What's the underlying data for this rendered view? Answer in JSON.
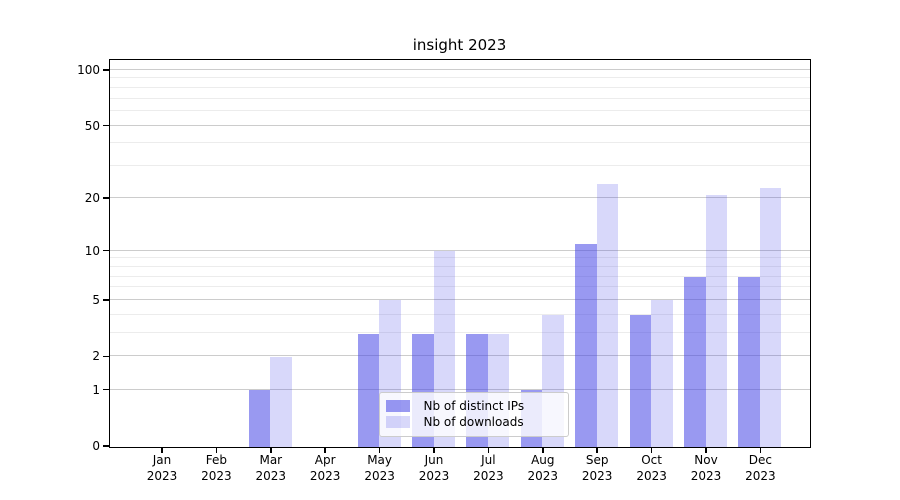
{
  "title": "insight 2023",
  "chart_data": {
    "type": "bar",
    "title": "insight 2023",
    "categories": [
      "Jan 2023",
      "Feb 2023",
      "Mar 2023",
      "Apr 2023",
      "May 2023",
      "Jun 2023",
      "Jul 2023",
      "Aug 2023",
      "Sep 2023",
      "Oct 2023",
      "Nov 2023",
      "Dec 2023"
    ],
    "x": {
      "months": [
        "Jan",
        "Feb",
        "Mar",
        "Apr",
        "May",
        "Jun",
        "Jul",
        "Aug",
        "Sep",
        "Oct",
        "Nov",
        "Dec"
      ],
      "year": "2023"
    },
    "series": [
      {
        "name": "Nb of distinct IPs",
        "color": "rgba(70,70,230,0.55)",
        "values": [
          0,
          0,
          1,
          0,
          3,
          3,
          3,
          1,
          11,
          4,
          7,
          7
        ]
      },
      {
        "name": "Nb of downloads",
        "color": "rgba(70,70,230,0.21)",
        "values": [
          0,
          0,
          2,
          0,
          5,
          10,
          3,
          4,
          24,
          5,
          21,
          23
        ]
      }
    ],
    "xlabel": "",
    "ylabel": "",
    "y_axis": {
      "scale": "log1p",
      "ticks": [
        0,
        1,
        2,
        5,
        10,
        20,
        50,
        100
      ],
      "minor_gridlines": [
        3,
        4,
        6,
        7,
        8,
        9,
        30,
        40,
        60,
        70,
        80,
        90
      ],
      "ylim": [
        0,
        115
      ],
      "grid": true
    },
    "legend": {
      "position": "lower-center-inside",
      "entries": [
        "Nb of distinct IPs",
        "Nb of downloads"
      ]
    },
    "colors": {
      "bar_distinct_ips": "#9a9af0",
      "bar_downloads": "#d9d9f9",
      "gridline_major": "#cccccc",
      "gridline_minor": "#ececec"
    }
  }
}
